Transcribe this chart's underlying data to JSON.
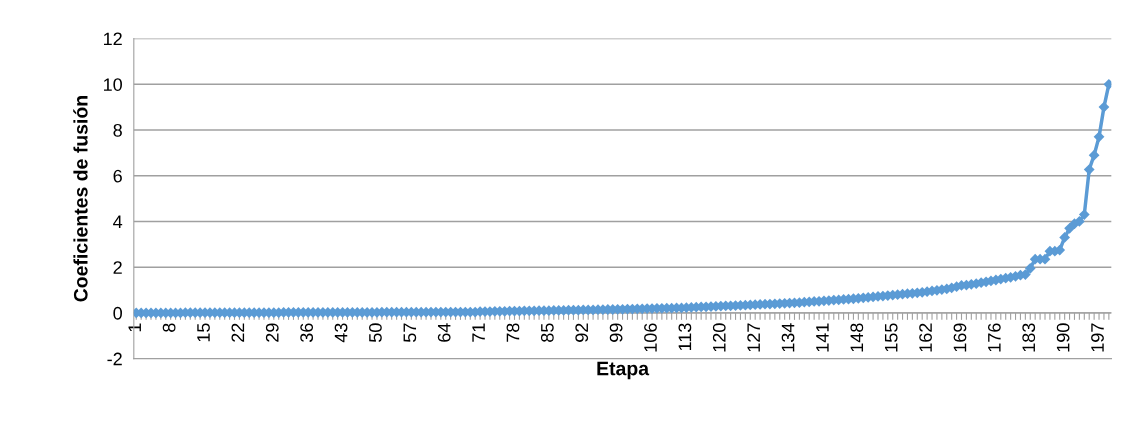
{
  "chart_data": {
    "type": "line",
    "xlabel": "Etapa",
    "ylabel": "Coeficientes de fusión",
    "categories": [
      "1",
      null,
      null,
      null,
      null,
      null,
      null,
      "8",
      null,
      null,
      null,
      null,
      null,
      null,
      "15",
      null,
      null,
      null,
      null,
      null,
      null,
      "22",
      null,
      null,
      null,
      null,
      null,
      null,
      "29",
      null,
      null,
      null,
      null,
      null,
      null,
      "36",
      null,
      null,
      null,
      null,
      null,
      null,
      "43",
      null,
      null,
      null,
      null,
      null,
      null,
      "50",
      null,
      null,
      null,
      null,
      null,
      null,
      "57",
      null,
      null,
      null,
      null,
      null,
      null,
      "64",
      null,
      null,
      null,
      null,
      null,
      null,
      "71",
      null,
      null,
      null,
      null,
      null,
      null,
      "78",
      null,
      null,
      null,
      null,
      null,
      null,
      "85",
      null,
      null,
      null,
      null,
      null,
      null,
      "92",
      null,
      null,
      null,
      null,
      null,
      null,
      "99",
      null,
      null,
      null,
      null,
      null,
      null,
      "106",
      null,
      null,
      null,
      null,
      null,
      null,
      "113",
      null,
      null,
      null,
      null,
      null,
      null,
      "120",
      null,
      null,
      null,
      null,
      null,
      null,
      "127",
      null,
      null,
      null,
      null,
      null,
      null,
      "134",
      null,
      null,
      null,
      null,
      null,
      null,
      "141",
      null,
      null,
      null,
      null,
      null,
      null,
      "148",
      null,
      null,
      null,
      null,
      null,
      null,
      "155",
      null,
      null,
      null,
      null,
      null,
      null,
      "162",
      null,
      null,
      null,
      null,
      null,
      null,
      "169",
      null,
      null,
      null,
      null,
      null,
      null,
      "176",
      null,
      null,
      null,
      null,
      null,
      null,
      "183",
      null,
      null,
      null,
      null,
      null,
      null,
      "190",
      null,
      null,
      null,
      null,
      null,
      null,
      "197",
      null,
      null
    ],
    "series": [
      {
        "color": "#5b9bd5",
        "values": [
          0,
          0,
          0,
          0,
          0,
          0,
          0,
          0,
          0,
          0,
          0.01,
          0.01,
          0.01,
          0.01,
          0.01,
          0.01,
          0.01,
          0.01,
          0.01,
          0.01,
          0.01,
          0.01,
          0.01,
          0.01,
          0.01,
          0.01,
          0.01,
          0.01,
          0.01,
          0.01,
          0.02,
          0.02,
          0.02,
          0.02,
          0.02,
          0.02,
          0.02,
          0.02,
          0.02,
          0.02,
          0.02,
          0.02,
          0.02,
          0.02,
          0.02,
          0.02,
          0.02,
          0.02,
          0.02,
          0.02,
          0.03,
          0.03,
          0.03,
          0.03,
          0.03,
          0.03,
          0.03,
          0.03,
          0.03,
          0.03,
          0.04,
          0.04,
          0.04,
          0.04,
          0.04,
          0.04,
          0.04,
          0.04,
          0.04,
          0.04,
          0.06,
          0.06,
          0.06,
          0.07,
          0.07,
          0.07,
          0.08,
          0.08,
          0.08,
          0.09,
          0.09,
          0.09,
          0.1,
          0.1,
          0.1,
          0.11,
          0.11,
          0.11,
          0.12,
          0.12,
          0.12,
          0.13,
          0.13,
          0.13,
          0.14,
          0.14,
          0.15,
          0.15,
          0.16,
          0.16,
          0.17,
          0.17,
          0.18,
          0.18,
          0.19,
          0.19,
          0.2,
          0.2,
          0.21,
          0.21,
          0.22,
          0.22,
          0.23,
          0.24,
          0.25,
          0.26,
          0.27,
          0.28,
          0.29,
          0.3,
          0.31,
          0.31,
          0.32,
          0.33,
          0.34,
          0.35,
          0.36,
          0.37,
          0.38,
          0.39,
          0.4,
          0.41,
          0.42,
          0.43,
          0.44,
          0.45,
          0.47,
          0.48,
          0.5,
          0.51,
          0.53,
          0.54,
          0.56,
          0.57,
          0.59,
          0.6,
          0.62,
          0.64,
          0.66,
          0.68,
          0.7,
          0.72,
          0.74,
          0.76,
          0.78,
          0.8,
          0.82,
          0.84,
          0.86,
          0.88,
          0.9,
          0.93,
          0.96,
          0.99,
          1.02,
          1.05,
          1.1,
          1.15,
          1.2,
          1.22,
          1.25,
          1.28,
          1.32,
          1.36,
          1.4,
          1.44,
          1.48,
          1.52,
          1.56,
          1.6,
          1.65,
          1.68,
          1.95,
          2.35,
          2.35,
          2.35,
          2.7,
          2.7,
          2.75,
          3.3,
          3.7,
          3.9,
          4.0,
          4.3,
          6.27,
          6.9,
          7.7,
          9.0,
          10.0
        ]
      }
    ],
    "ylim": [
      -2,
      12
    ],
    "yticks": [
      -2,
      0,
      2,
      4,
      6,
      8,
      10,
      12
    ],
    "grid": "y",
    "marker": "diamond",
    "line_style": "solid"
  }
}
